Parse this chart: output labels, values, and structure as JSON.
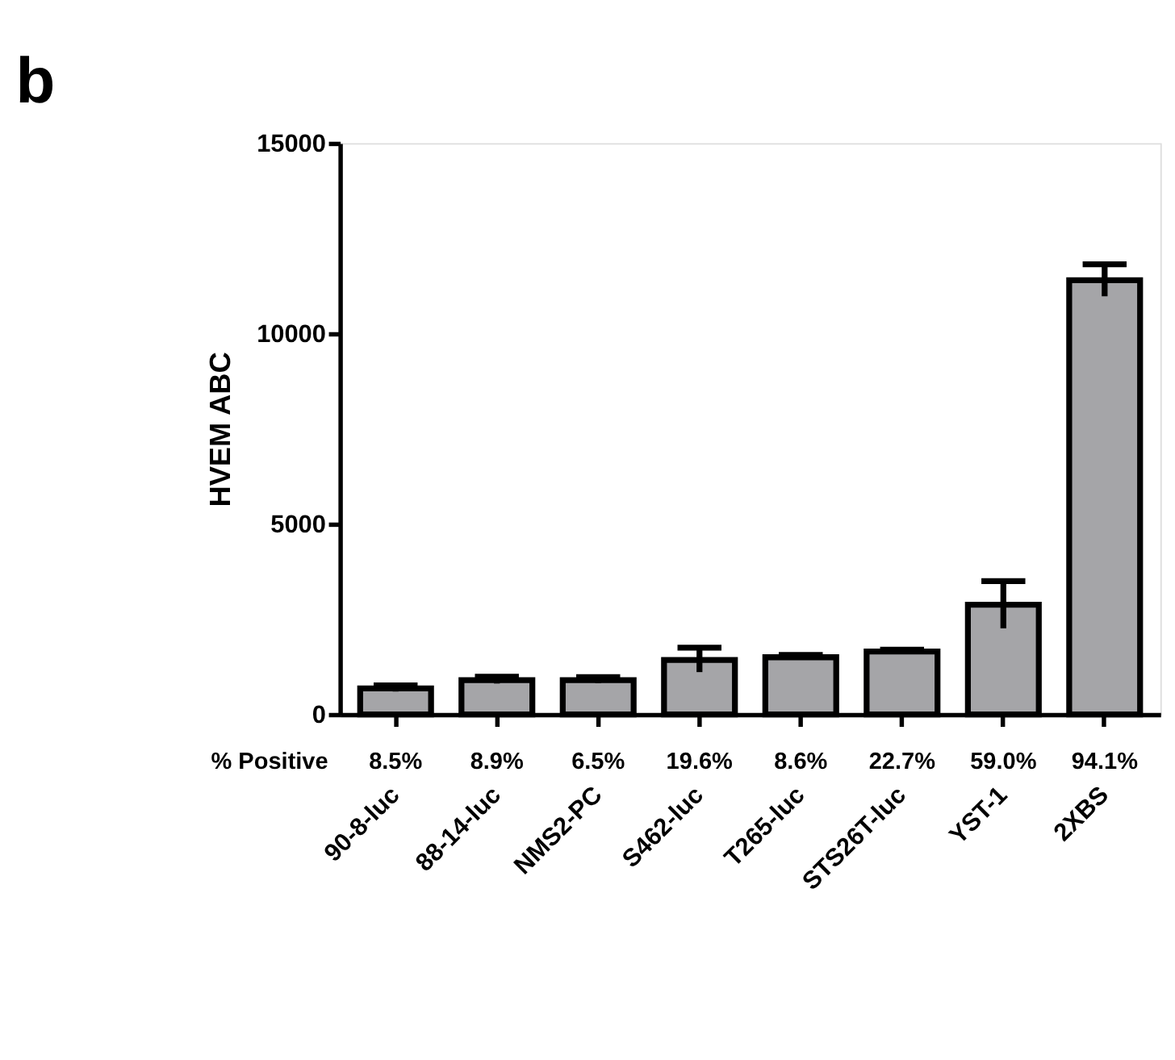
{
  "chart_data": {
    "type": "bar",
    "title": "b",
    "ylabel": "HVEM  ABC",
    "categories": [
      "90-8-luc",
      "88-14-luc",
      "NMS2-PC",
      "S462-luc",
      "T265-luc",
      "STS26T-luc",
      "YST-1",
      "2XBS"
    ],
    "values": [
      680,
      900,
      900,
      1430,
      1500,
      1650,
      2880,
      11400
    ],
    "errors": [
      80,
      90,
      80,
      320,
      60,
      50,
      620,
      420
    ],
    "color": "#a5a5a8",
    "ylim": [
      0,
      15000
    ],
    "yticks": [
      0,
      5000,
      10000,
      15000
    ],
    "grid": false,
    "annotations": [
      "% Positive",
      "8.5%",
      "8.9%",
      "6.5%",
      "19.6%",
      "8.6%",
      "22.7%",
      "59.0%",
      "94.1%"
    ]
  }
}
